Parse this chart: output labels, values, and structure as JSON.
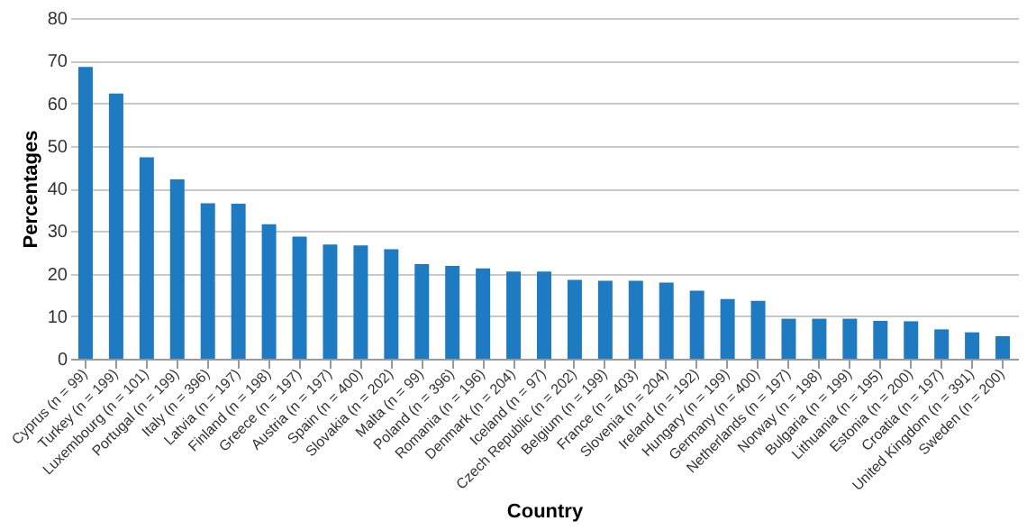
{
  "chart_data": {
    "type": "bar",
    "xlabel": "Country",
    "ylabel": "Percentages",
    "categories": [
      "Cyprus (n = 99)",
      "Turkey (n = 199)",
      "Luxembourg (n = 101)",
      "Portugal (n = 199)",
      "Italy (n = 396)",
      "Latvia (n = 197)",
      "Finland (n = 198)",
      "Greece (n = 197)",
      "Austria (n = 197)",
      "Spain (n = 400)",
      "Slovakia (n = 202)",
      "Malta (n = 99)",
      "Poland (n = 396)",
      "Romania (n = 196)",
      "Denmark (n = 204)",
      "Iceland (n = 97)",
      "Czech Republic (n = 202)",
      "Belgium (n = 199)",
      "France (n = 403)",
      "Slovenia (n = 204)",
      "Ireland (n = 192)",
      "Hungary (n = 199)",
      "Germany (n = 400)",
      "Netherlands (n = 197)",
      "Norway (n = 198)",
      "Bulgaria (n = 199)",
      "Lithuania (n = 195)",
      "Estonia (n = 200)",
      "Croatia (n = 197)",
      "United Kingdom (n = 391)",
      "Sweden (n = 200)"
    ],
    "values": [
      68.5,
      62.3,
      47.3,
      42.1,
      36.5,
      36.4,
      31.6,
      28.7,
      26.8,
      26.6,
      25.7,
      22.2,
      21.8,
      21.2,
      20.5,
      20.5,
      18.5,
      18.3,
      18.3,
      17.9,
      16.0,
      14.0,
      13.6,
      9.4,
      9.4,
      9.4,
      8.9,
      8.8,
      6.9,
      6.2,
      5.3
    ],
    "color": "#1f7bc1",
    "ylim": [
      0,
      80
    ],
    "yticks": [
      0,
      10,
      20,
      30,
      40,
      50,
      60,
      70,
      80
    ],
    "grid": "y"
  }
}
